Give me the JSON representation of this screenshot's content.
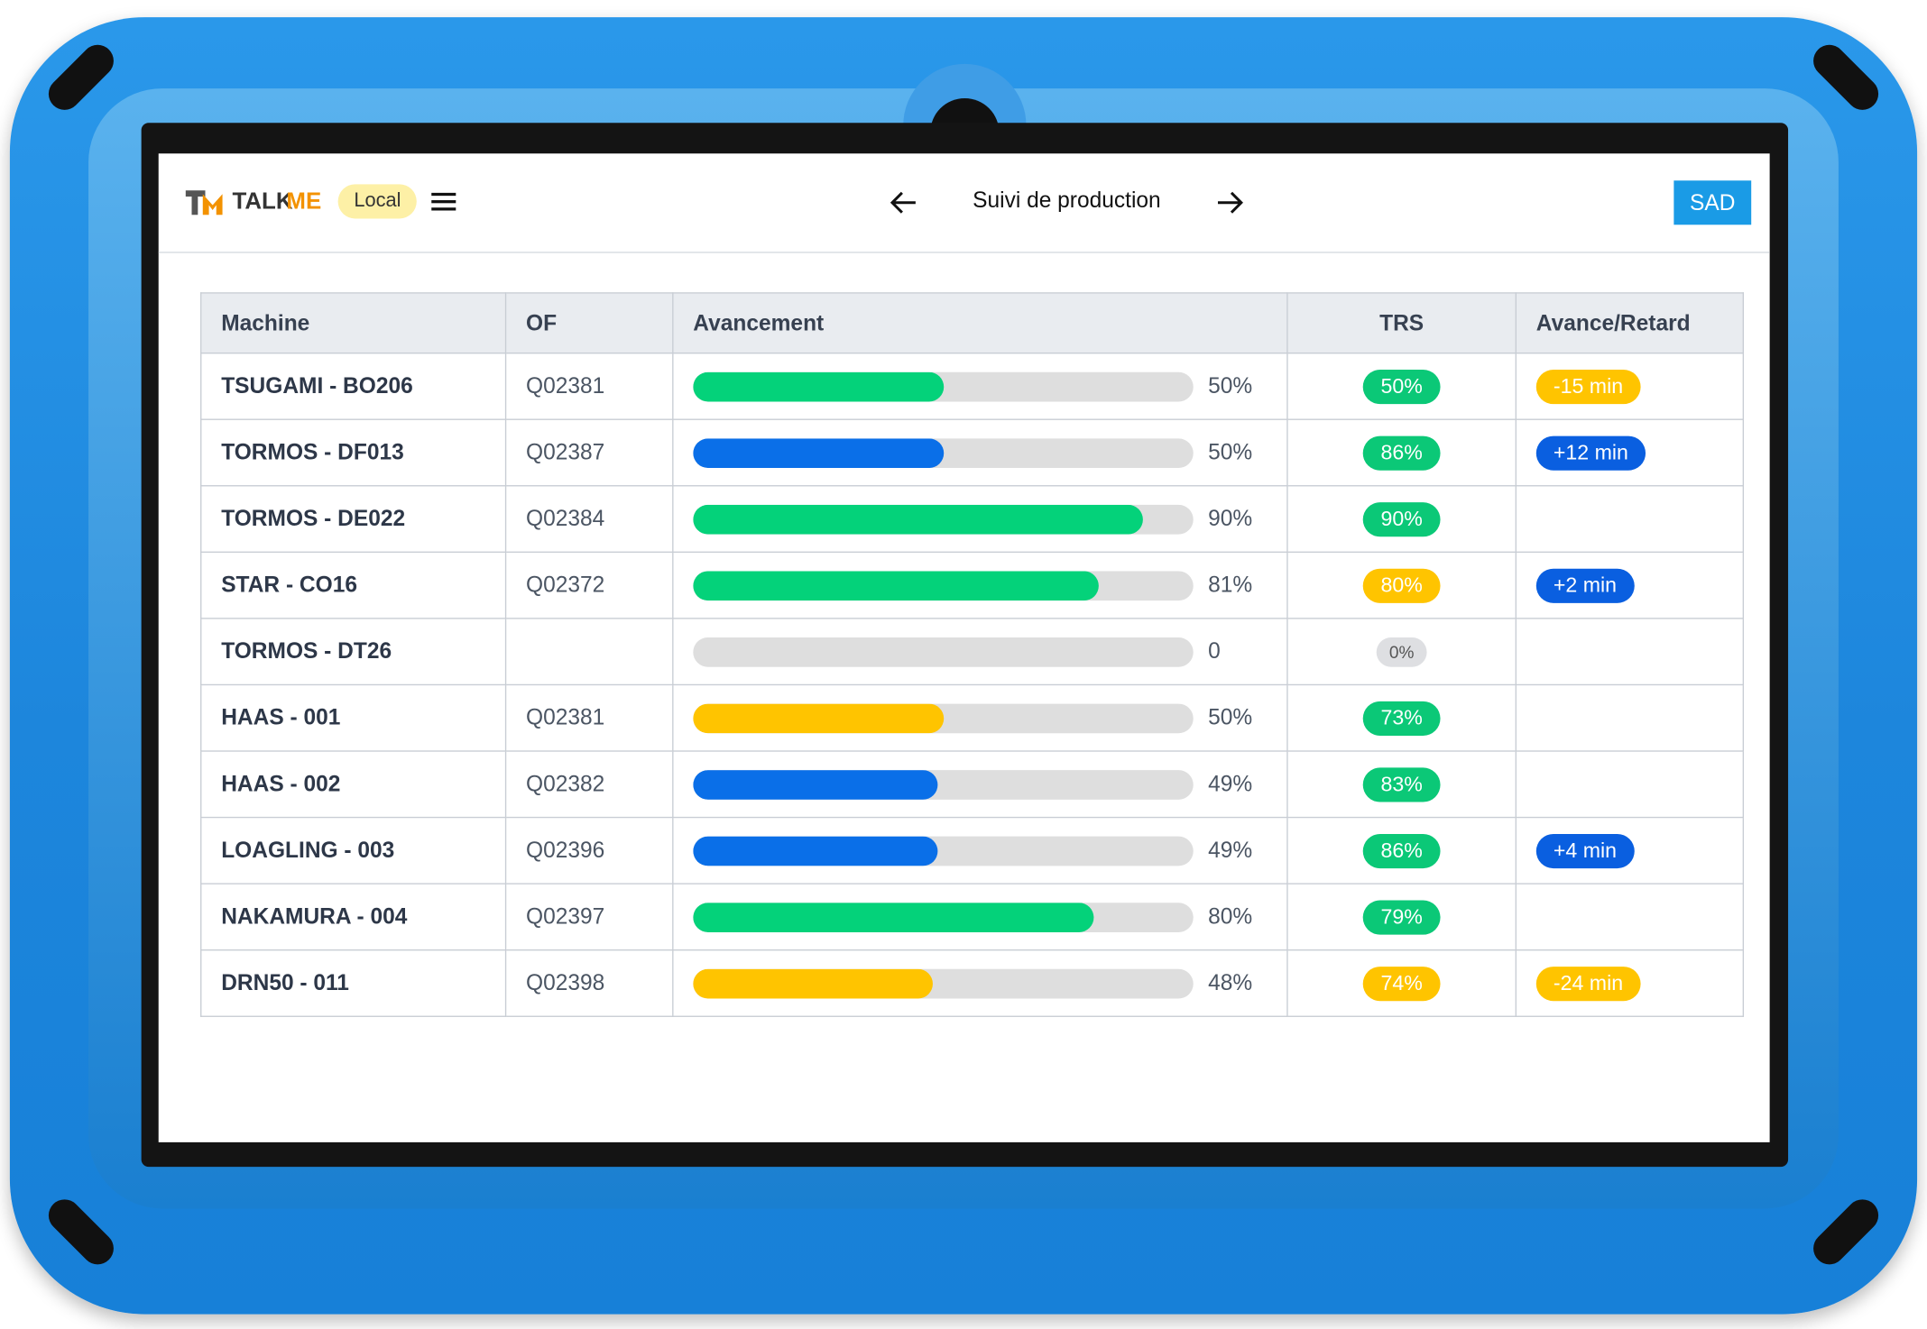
{
  "header": {
    "logo": {
      "dark": "TALK",
      "accent": "ME"
    },
    "badge": "Local",
    "title": "Suivi de production",
    "user": "SAD"
  },
  "table": {
    "columns": [
      "Machine",
      "OF",
      "Avancement",
      "TRS",
      "Avance/Retard"
    ],
    "rows": [
      {
        "machine": "TSUGAMI - BO206",
        "of": "Q02381",
        "progress": {
          "value": 50,
          "label": "50%"
        },
        "progress_color": "#04d27a",
        "trs": "50%",
        "trs_color": "#0bc877",
        "delay": "-15 min",
        "delay_color": "#ffc400"
      },
      {
        "machine": "TORMOS - DF013",
        "of": "Q02387",
        "progress": {
          "value": 50,
          "label": "50%"
        },
        "progress_color": "#0a6fe8",
        "trs": "86%",
        "trs_color": "#0bc877",
        "delay": "+12 min",
        "delay_color": "#0a5fe0"
      },
      {
        "machine": "TORMOS - DE022",
        "of": "Q02384",
        "progress": {
          "value": 90,
          "label": "90%"
        },
        "progress_color": "#04d27a",
        "trs": "90%",
        "trs_color": "#0bc877",
        "delay": null,
        "delay_color": null
      },
      {
        "machine": "STAR - CO16",
        "of": "Q02372",
        "progress": {
          "value": 81,
          "label": "81%"
        },
        "progress_color": "#04d27a",
        "trs": "80%",
        "trs_color": "#ffc400",
        "delay": "+2 min",
        "delay_color": "#0a5fe0"
      },
      {
        "machine": "TORMOS - DT26",
        "of": null,
        "progress": 0,
        "progress_color": "#04d27a",
        "trs": "0%",
        "trs_color": "#dedfe2",
        "delay": null,
        "delay_color": null
      },
      {
        "machine": "HAAS - 001",
        "of": "Q02381",
        "progress": {
          "value": 50,
          "label": "50%"
        },
        "progress_color": "#ffc400",
        "trs": "73%",
        "trs_color": "#0bc877",
        "delay": null,
        "delay_color": null
      },
      {
        "machine": "HAAS - 002",
        "of": "Q02382",
        "progress": {
          "value": 49,
          "label": "49%"
        },
        "progress_color": "#0a6fe8",
        "trs": "83%",
        "trs_color": "#0bc877",
        "delay": null,
        "delay_color": null
      },
      {
        "machine": "LOAGLING - 003",
        "of": "Q02396",
        "progress": {
          "value": 49,
          "label": "49%"
        },
        "progress_color": "#0a6fe8",
        "trs": "86%",
        "trs_color": "#0bc877",
        "delay": "+4 min",
        "delay_color": "#0a5fe0"
      },
      {
        "machine": "NAKAMURA - 004",
        "of": "Q02397",
        "progress": {
          "value": 80,
          "label": "80%"
        },
        "progress_color": "#04d27a",
        "trs": "79%",
        "trs_color": "#0bc877",
        "delay": null,
        "delay_color": null
      },
      {
        "machine": "DRN50 - 011",
        "of": "Q02398",
        "progress": {
          "value": 48,
          "label": "48%"
        },
        "progress_color": "#ffc400",
        "trs": "74%",
        "trs_color": "#ffc400",
        "delay": "-24 min",
        "delay_color": "#ffc400"
      }
    ]
  }
}
